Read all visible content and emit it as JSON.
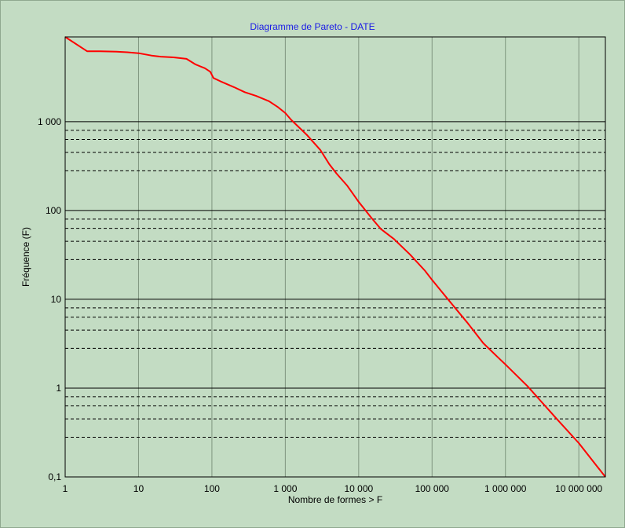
{
  "chart_data": {
    "type": "line",
    "title": "Diagramme de Pareto - DATE",
    "xlabel": "Nombre de formes > F",
    "ylabel": "Fréquence (F)",
    "x_scale": "log",
    "y_scale": "log",
    "xlim": [
      1,
      23000000
    ],
    "ylim": [
      0.1,
      9000
    ],
    "x_ticks": [
      1,
      10,
      100,
      1000,
      10000,
      100000,
      1000000,
      10000000
    ],
    "x_tick_labels": [
      "1",
      "10",
      "100",
      "1 000",
      "10 000",
      "100 000",
      "1 000 000",
      "10 000 000"
    ],
    "y_ticks": [
      0.1,
      1,
      10,
      100,
      1000
    ],
    "y_tick_labels": [
      "0,1",
      "1",
      "10",
      "100",
      "1 000"
    ],
    "y_minor_gridlines": [
      0.8,
      0.63,
      0.45,
      0.28
    ],
    "grid": true,
    "series": [
      {
        "color": "#ff0000",
        "points": [
          [
            1,
            9000
          ],
          [
            2,
            6200
          ],
          [
            3,
            6200
          ],
          [
            5,
            6150
          ],
          [
            7,
            6050
          ],
          [
            10,
            5900
          ],
          [
            15,
            5550
          ],
          [
            20,
            5400
          ],
          [
            30,
            5300
          ],
          [
            45,
            5100
          ],
          [
            60,
            4400
          ],
          [
            80,
            4000
          ],
          [
            95,
            3650
          ],
          [
            105,
            3100
          ],
          [
            130,
            2850
          ],
          [
            200,
            2450
          ],
          [
            280,
            2150
          ],
          [
            400,
            1950
          ],
          [
            600,
            1700
          ],
          [
            800,
            1450
          ],
          [
            1000,
            1250
          ],
          [
            1200,
            1050
          ],
          [
            1500,
            880
          ],
          [
            2000,
            700
          ],
          [
            3000,
            480
          ],
          [
            4000,
            330
          ],
          [
            5000,
            260
          ],
          [
            7000,
            190
          ],
          [
            10000,
            125
          ],
          [
            15000,
            82
          ],
          [
            20000,
            62
          ],
          [
            30000,
            48
          ],
          [
            50000,
            32
          ],
          [
            80000,
            21
          ],
          [
            100000,
            16.5
          ],
          [
            150000,
            11
          ],
          [
            300000,
            5.5
          ],
          [
            500000,
            3.2
          ],
          [
            800000,
            2.2
          ],
          [
            1000000,
            1.85
          ],
          [
            2000000,
            1.05
          ],
          [
            5000000,
            0.45
          ],
          [
            10000000,
            0.24
          ],
          [
            23000000,
            0.1
          ]
        ]
      }
    ]
  }
}
